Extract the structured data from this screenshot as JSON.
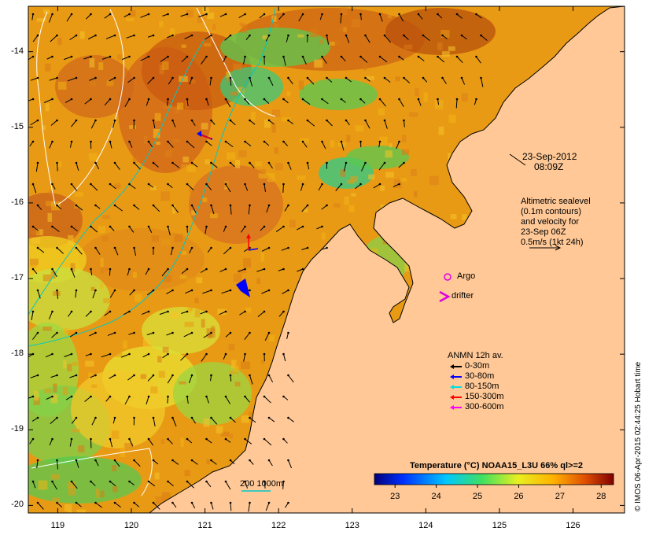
{
  "chart_data": {
    "type": "heatmap",
    "title": "Temperature (°C) NOAA15_L3U 66% ql>=2",
    "colorbar": {
      "min": 22.5,
      "max": 28.3,
      "ticks": [
        23,
        24,
        25,
        26,
        27,
        28
      ]
    },
    "x_ticks": [
      119,
      120,
      121,
      122,
      123,
      124,
      125,
      126
    ],
    "y_ticks": [
      -14,
      -15,
      -16,
      -17,
      -18,
      -19,
      -20
    ],
    "xlim": [
      118.6,
      126.7
    ],
    "ylim": [
      -20.1,
      -13.4
    ],
    "grid": false
  },
  "labels": {
    "date": "23-Sep-2012",
    "time": "08:09Z",
    "info": [
      "Altimetric sealevel",
      "(0.1m contours)",
      "and velocity for",
      "23-Sep 06Z",
      "0.5m/s (1kt 24h)"
    ],
    "argo": "Argo",
    "drifter": "drifter",
    "anmn_title": "ANMN 12h av.",
    "anmn_bins": [
      {
        "label": "0-30m",
        "color": "#000000"
      },
      {
        "label": "30-80m",
        "color": "#0000ff"
      },
      {
        "label": "80-150m",
        "color": "#00e0e0"
      },
      {
        "label": "150-300m",
        "color": "#ff0000"
      },
      {
        "label": "300-600m",
        "color": "#ff00ff"
      }
    ],
    "bathymetry": "200  1000m",
    "credit": "© IMOS 06-Apr-2015 02:44:25 Hobart time"
  },
  "colors": {
    "land": "#ffc896",
    "warm": "#c85a0f",
    "mid": "#f0b414",
    "cool": "#5ac850",
    "current": "#00e0e0",
    "argo": "#e000e0"
  }
}
